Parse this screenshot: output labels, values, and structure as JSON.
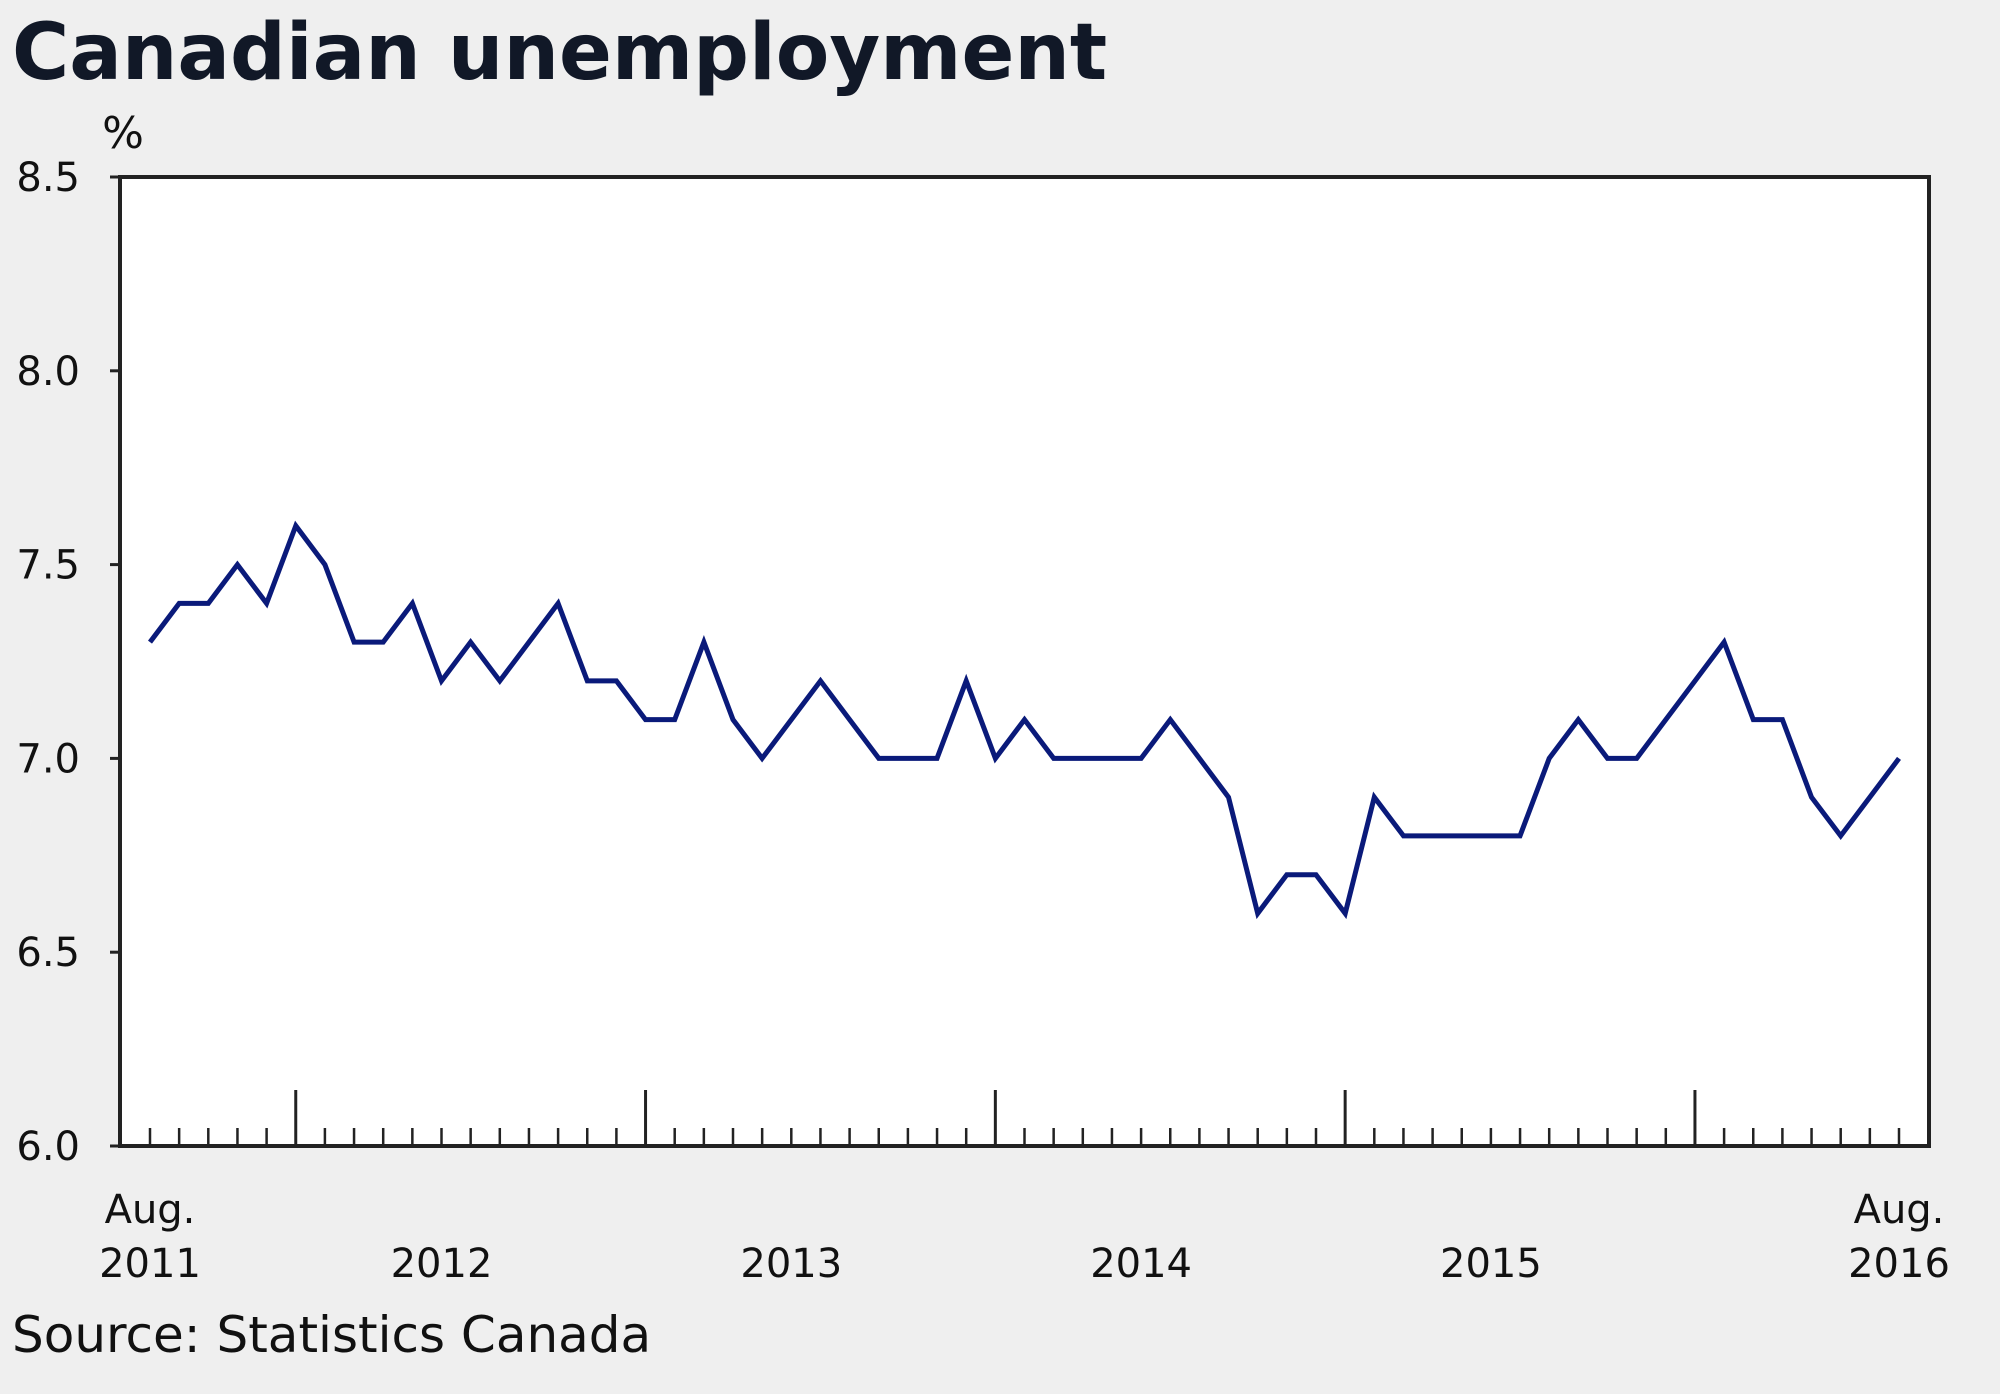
{
  "chart_data": {
    "type": "line",
    "title": "Canadian unemployment",
    "ylabel": "%",
    "xlabel": "",
    "ylim": [
      6.0,
      8.5
    ],
    "yticks": [
      "8.5",
      "8.0",
      "7.5",
      "7.0",
      "6.5",
      "6.0"
    ],
    "x_start": "2011-08",
    "x_end": "2016-08",
    "x_ticks": [
      {
        "month": "2011-08",
        "line1": "Aug.",
        "line2": "2011"
      },
      {
        "month": "2012-06",
        "line1": "",
        "line2": "2012"
      },
      {
        "month": "2013-06",
        "line1": "",
        "line2": "2013"
      },
      {
        "month": "2014-06",
        "line1": "",
        "line2": "2014"
      },
      {
        "month": "2015-06",
        "line1": "",
        "line2": "2015"
      },
      {
        "month": "2016-08",
        "line1": "Aug.",
        "line2": "2016"
      }
    ],
    "year_boundaries": [
      "2012-01",
      "2013-01",
      "2014-01",
      "2015-01",
      "2016-01"
    ],
    "grid": false,
    "series": [
      {
        "color": "#0a1a7a",
        "x": [
          "2011-08",
          "2011-09",
          "2011-10",
          "2011-11",
          "2011-12",
          "2012-01",
          "2012-02",
          "2012-03",
          "2012-04",
          "2012-05",
          "2012-06",
          "2012-07",
          "2012-08",
          "2012-09",
          "2012-10",
          "2012-11",
          "2012-12",
          "2013-01",
          "2013-02",
          "2013-03",
          "2013-04",
          "2013-05",
          "2013-06",
          "2013-07",
          "2013-08",
          "2013-09",
          "2013-10",
          "2013-11",
          "2013-12",
          "2014-01",
          "2014-02",
          "2014-03",
          "2014-04",
          "2014-05",
          "2014-06",
          "2014-07",
          "2014-08",
          "2014-09",
          "2014-10",
          "2014-11",
          "2014-12",
          "2015-01",
          "2015-02",
          "2015-03",
          "2015-04",
          "2015-05",
          "2015-06",
          "2015-07",
          "2015-08",
          "2015-09",
          "2015-10",
          "2015-11",
          "2015-12",
          "2016-01",
          "2016-02",
          "2016-03",
          "2016-04",
          "2016-05",
          "2016-06",
          "2016-07",
          "2016-08"
        ],
        "values": [
          7.3,
          7.4,
          7.4,
          7.5,
          7.4,
          7.6,
          7.5,
          7.3,
          7.3,
          7.4,
          7.2,
          7.3,
          7.2,
          7.3,
          7.4,
          7.2,
          7.2,
          7.1,
          7.1,
          7.3,
          7.1,
          7.0,
          7.1,
          7.2,
          7.1,
          7.0,
          7.0,
          7.0,
          7.2,
          7.0,
          7.1,
          7.0,
          7.0,
          7.0,
          7.0,
          7.1,
          7.0,
          6.9,
          6.6,
          6.7,
          6.7,
          6.6,
          6.9,
          6.8,
          6.8,
          6.8,
          6.8,
          6.8,
          7.0,
          7.1,
          7.0,
          7.0,
          7.1,
          7.2,
          7.3,
          7.1,
          7.1,
          6.9,
          6.8,
          6.9,
          7.0
        ]
      }
    ],
    "source": "Source: Statistics Canada"
  }
}
